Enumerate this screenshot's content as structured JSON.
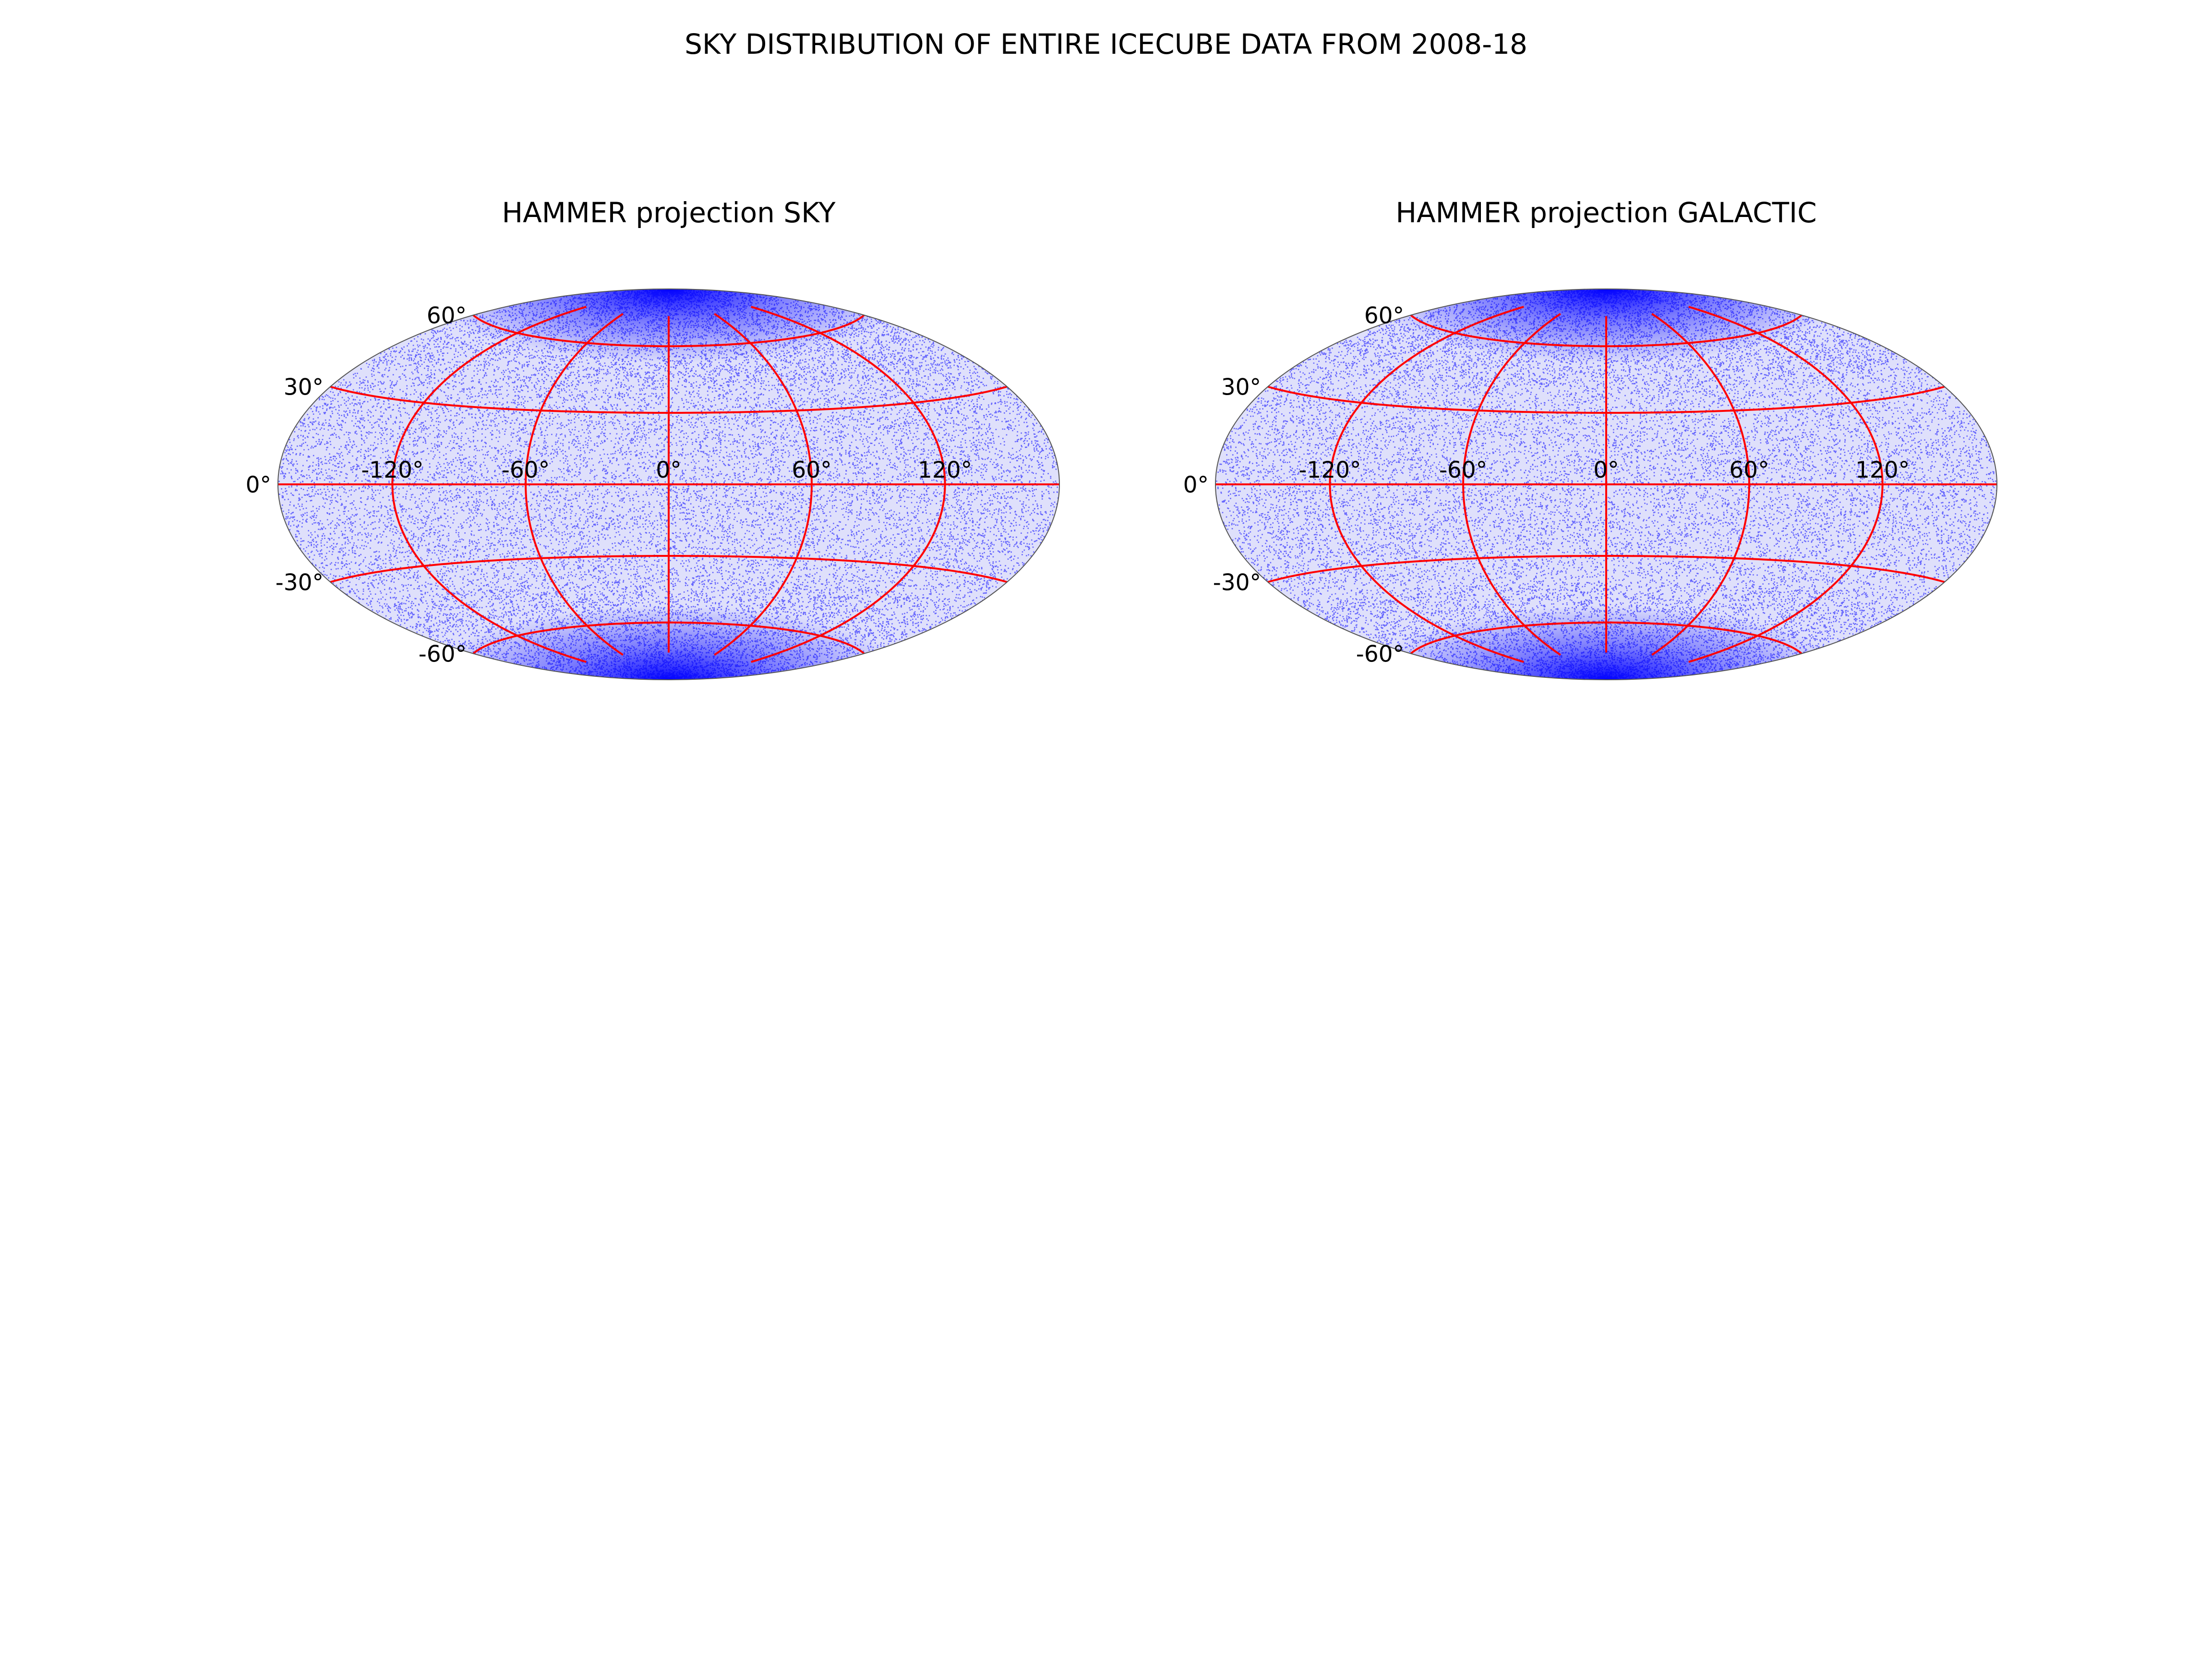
{
  "figure": {
    "title": "SKY DISTRIBUTION OF ENTIRE ICECUBE DATA FROM 2008-18"
  },
  "chart_data": [
    {
      "type": "scatter",
      "projection": "hammer",
      "title": "HAMMER projection SKY",
      "xlabel": "",
      "ylabel": "",
      "xlim": [
        -180,
        180
      ],
      "ylim": [
        -90,
        90
      ],
      "x_ticks": [
        -120,
        -60,
        0,
        60,
        120
      ],
      "x_tick_labels": [
        "-120°",
        "-60°",
        "0°",
        "60°",
        "120°"
      ],
      "y_ticks": [
        60,
        30,
        0,
        -30,
        -60
      ],
      "y_tick_labels": [
        "60°",
        "30°",
        "0°",
        "-30°",
        "-60°"
      ],
      "grid": true,
      "grid_color": "#ff0000",
      "marker_color": "#0000ff",
      "distribution": "dense, near-uniform event coverage of the full sky, concentrated toward the poles (±90°)"
    },
    {
      "type": "scatter",
      "projection": "hammer",
      "title": "HAMMER projection GALACTIC",
      "xlabel": "",
      "ylabel": "",
      "xlim": [
        -180,
        180
      ],
      "ylim": [
        -90,
        90
      ],
      "x_ticks": [
        -120,
        -60,
        0,
        60,
        120
      ],
      "x_tick_labels": [
        "-120°",
        "-60°",
        "0°",
        "60°",
        "120°"
      ],
      "y_ticks": [
        60,
        30,
        0,
        -30,
        -60
      ],
      "y_tick_labels": [
        "60°",
        "30°",
        "0°",
        "-30°",
        "-60°"
      ],
      "grid": true,
      "grid_color": "#ff0000",
      "marker_color": "#0000ff",
      "distribution": "dense, near-uniform event coverage of the full sky, concentrated toward the poles (±90°)"
    }
  ]
}
